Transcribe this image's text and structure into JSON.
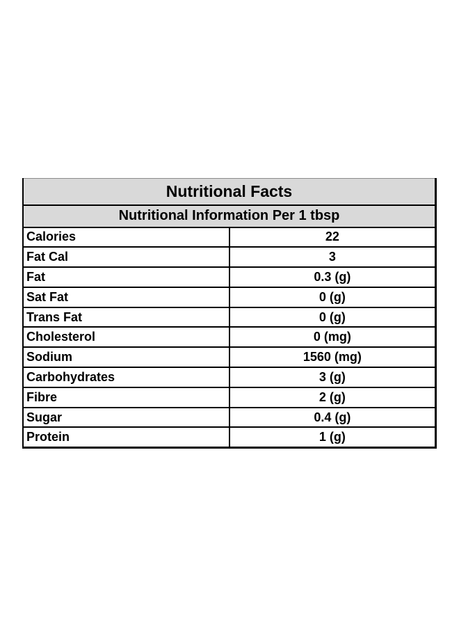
{
  "title": "Nutritional Facts",
  "subtitle": "Nutritional Information Per 1 tbsp",
  "rows": [
    {
      "name": "Calories",
      "value": "22"
    },
    {
      "name": "Fat Cal",
      "value": "3"
    },
    {
      "name": "Fat",
      "value": "0.3 (g)"
    },
    {
      "name": "Sat Fat",
      "value": "0 (g)"
    },
    {
      "name": "Trans Fat",
      "value": "0 (g)"
    },
    {
      "name": "Cholesterol",
      "value": "0 (mg)"
    },
    {
      "name": "Sodium",
      "value": "1560 (mg)"
    },
    {
      "name": "Carbohydrates",
      "value": "3 (g)"
    },
    {
      "name": "Fibre",
      "value": "2 (g)"
    },
    {
      "name": "Sugar",
      "value": "0.4 (g)"
    },
    {
      "name": "Protein",
      "value": "1 (g)"
    }
  ],
  "colors": {
    "header_background": "#d9d9d9",
    "border": "#000000",
    "text": "#000000",
    "page_background": "#ffffff"
  }
}
